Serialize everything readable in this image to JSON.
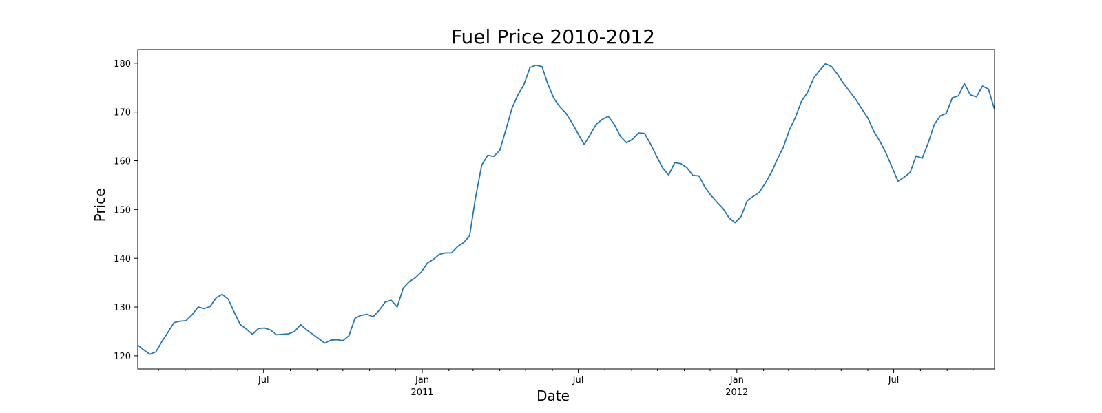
{
  "chart_data": {
    "type": "line",
    "title": "Fuel Price 2010-2012",
    "xlabel": "Date",
    "ylabel": "Price",
    "xlim": [
      "2010-02-05",
      "2012-10-26"
    ],
    "ylim": [
      117.3,
      182.8
    ],
    "grid": false,
    "y_ticks": [
      120,
      130,
      140,
      150,
      160,
      170,
      180
    ],
    "x_major_ticks": [
      {
        "date": "2010-07-01",
        "label": "Jul",
        "sublabel": ""
      },
      {
        "date": "2011-01-01",
        "label": "Jan",
        "sublabel": "2011"
      },
      {
        "date": "2011-07-01",
        "label": "Jul",
        "sublabel": ""
      },
      {
        "date": "2012-01-01",
        "label": "Jan",
        "sublabel": "2012"
      },
      {
        "date": "2012-07-01",
        "label": "Jul",
        "sublabel": ""
      }
    ],
    "x_minor_ticks": [
      "2010-03-01",
      "2010-04-01",
      "2010-05-01",
      "2010-06-01",
      "2010-08-01",
      "2010-09-01",
      "2010-10-01",
      "2010-11-01",
      "2010-12-01",
      "2011-02-01",
      "2011-03-01",
      "2011-04-01",
      "2011-05-01",
      "2011-06-01",
      "2011-08-01",
      "2011-09-01",
      "2011-10-01",
      "2011-11-01",
      "2011-12-01",
      "2012-02-01",
      "2012-03-01",
      "2012-04-01",
      "2012-05-01",
      "2012-06-01",
      "2012-08-01",
      "2012-09-01",
      "2012-10-01"
    ],
    "series": [
      {
        "color": "#1f77b4",
        "x": [
          "2010-02-05",
          "2010-02-12",
          "2010-02-19",
          "2010-02-26",
          "2010-03-05",
          "2010-03-12",
          "2010-03-19",
          "2010-03-26",
          "2010-04-02",
          "2010-04-09",
          "2010-04-16",
          "2010-04-23",
          "2010-04-30",
          "2010-05-07",
          "2010-05-14",
          "2010-05-21",
          "2010-05-28",
          "2010-06-04",
          "2010-06-11",
          "2010-06-18",
          "2010-06-25",
          "2010-07-02",
          "2010-07-09",
          "2010-07-16",
          "2010-07-23",
          "2010-07-30",
          "2010-08-06",
          "2010-08-13",
          "2010-08-20",
          "2010-08-27",
          "2010-09-03",
          "2010-09-10",
          "2010-09-17",
          "2010-09-24",
          "2010-10-01",
          "2010-10-08",
          "2010-10-15",
          "2010-10-22",
          "2010-10-29",
          "2010-11-05",
          "2010-11-12",
          "2010-11-19",
          "2010-11-26",
          "2010-12-03",
          "2010-12-10",
          "2010-12-17",
          "2010-12-24",
          "2010-12-31",
          "2011-01-07",
          "2011-01-14",
          "2011-01-21",
          "2011-01-28",
          "2011-02-04",
          "2011-02-11",
          "2011-02-18",
          "2011-02-25",
          "2011-03-04",
          "2011-03-11",
          "2011-03-18",
          "2011-03-25",
          "2011-04-01",
          "2011-04-08",
          "2011-04-15",
          "2011-04-22",
          "2011-04-29",
          "2011-05-06",
          "2011-05-13",
          "2011-05-20",
          "2011-05-27",
          "2011-06-03",
          "2011-06-10",
          "2011-06-17",
          "2011-06-24",
          "2011-07-01",
          "2011-07-08",
          "2011-07-15",
          "2011-07-22",
          "2011-07-29",
          "2011-08-05",
          "2011-08-12",
          "2011-08-19",
          "2011-08-26",
          "2011-09-02",
          "2011-09-09",
          "2011-09-16",
          "2011-09-23",
          "2011-09-30",
          "2011-10-07",
          "2011-10-14",
          "2011-10-21",
          "2011-10-28",
          "2011-11-04",
          "2011-11-11",
          "2011-11-18",
          "2011-11-25",
          "2011-12-02",
          "2011-12-09",
          "2011-12-16",
          "2011-12-23",
          "2011-12-30",
          "2012-01-06",
          "2012-01-13",
          "2012-01-20",
          "2012-01-27",
          "2012-02-03",
          "2012-02-10",
          "2012-02-17",
          "2012-02-24",
          "2012-03-02",
          "2012-03-09",
          "2012-03-16",
          "2012-03-23",
          "2012-03-30",
          "2012-04-06",
          "2012-04-13",
          "2012-04-20",
          "2012-04-27",
          "2012-05-04",
          "2012-05-11",
          "2012-05-18",
          "2012-05-25",
          "2012-06-01",
          "2012-06-08",
          "2012-06-15",
          "2012-06-22",
          "2012-06-29",
          "2012-07-06",
          "2012-07-13",
          "2012-07-20",
          "2012-07-27",
          "2012-08-03",
          "2012-08-10",
          "2012-08-17",
          "2012-08-24",
          "2012-08-31",
          "2012-09-07",
          "2012-09-14",
          "2012-09-21",
          "2012-09-28",
          "2012-10-05",
          "2012-10-12",
          "2012-10-19",
          "2012-10-26"
        ],
        "values": [
          122.2,
          121.2,
          120.3,
          120.8,
          122.9,
          124.8,
          126.8,
          127.1,
          127.2,
          128.4,
          130.0,
          129.7,
          130.1,
          131.9,
          132.6,
          131.6,
          128.9,
          126.4,
          125.5,
          124.4,
          125.6,
          125.7,
          125.3,
          124.3,
          124.4,
          124.5,
          125.0,
          126.4,
          125.3,
          124.4,
          123.5,
          122.6,
          123.2,
          123.3,
          123.1,
          124.1,
          127.7,
          128.3,
          128.5,
          128.0,
          129.3,
          131.0,
          131.4,
          130.0,
          133.9,
          135.2,
          136.0,
          137.2,
          139.0,
          139.8,
          140.8,
          141.1,
          141.1,
          142.4,
          143.2,
          144.6,
          152.6,
          159.1,
          161.1,
          160.9,
          162.1,
          166.3,
          170.7,
          173.5,
          175.6,
          179.1,
          179.6,
          179.3,
          175.6,
          172.7,
          171.0,
          169.7,
          167.7,
          165.5,
          163.3,
          165.4,
          167.5,
          168.5,
          169.1,
          167.4,
          165.0,
          163.7,
          164.4,
          165.7,
          165.6,
          163.4,
          160.9,
          158.5,
          157.1,
          159.6,
          159.4,
          158.6,
          157.0,
          156.9,
          154.6,
          152.9,
          151.5,
          150.2,
          148.3,
          147.3,
          148.6,
          151.8,
          152.7,
          153.5,
          155.4,
          157.6,
          160.3,
          162.8,
          166.3,
          168.9,
          172.2,
          174.0,
          176.9,
          178.5,
          179.9,
          179.3,
          177.7,
          175.8,
          174.2,
          172.6,
          170.6,
          168.8,
          166.0,
          164.0,
          161.6,
          158.7,
          155.8,
          156.6,
          157.6,
          161.0,
          160.5,
          163.6,
          167.4,
          169.2,
          169.7,
          172.9,
          173.3,
          175.8,
          173.5,
          173.1,
          175.3,
          174.7,
          170.5
        ]
      }
    ]
  }
}
